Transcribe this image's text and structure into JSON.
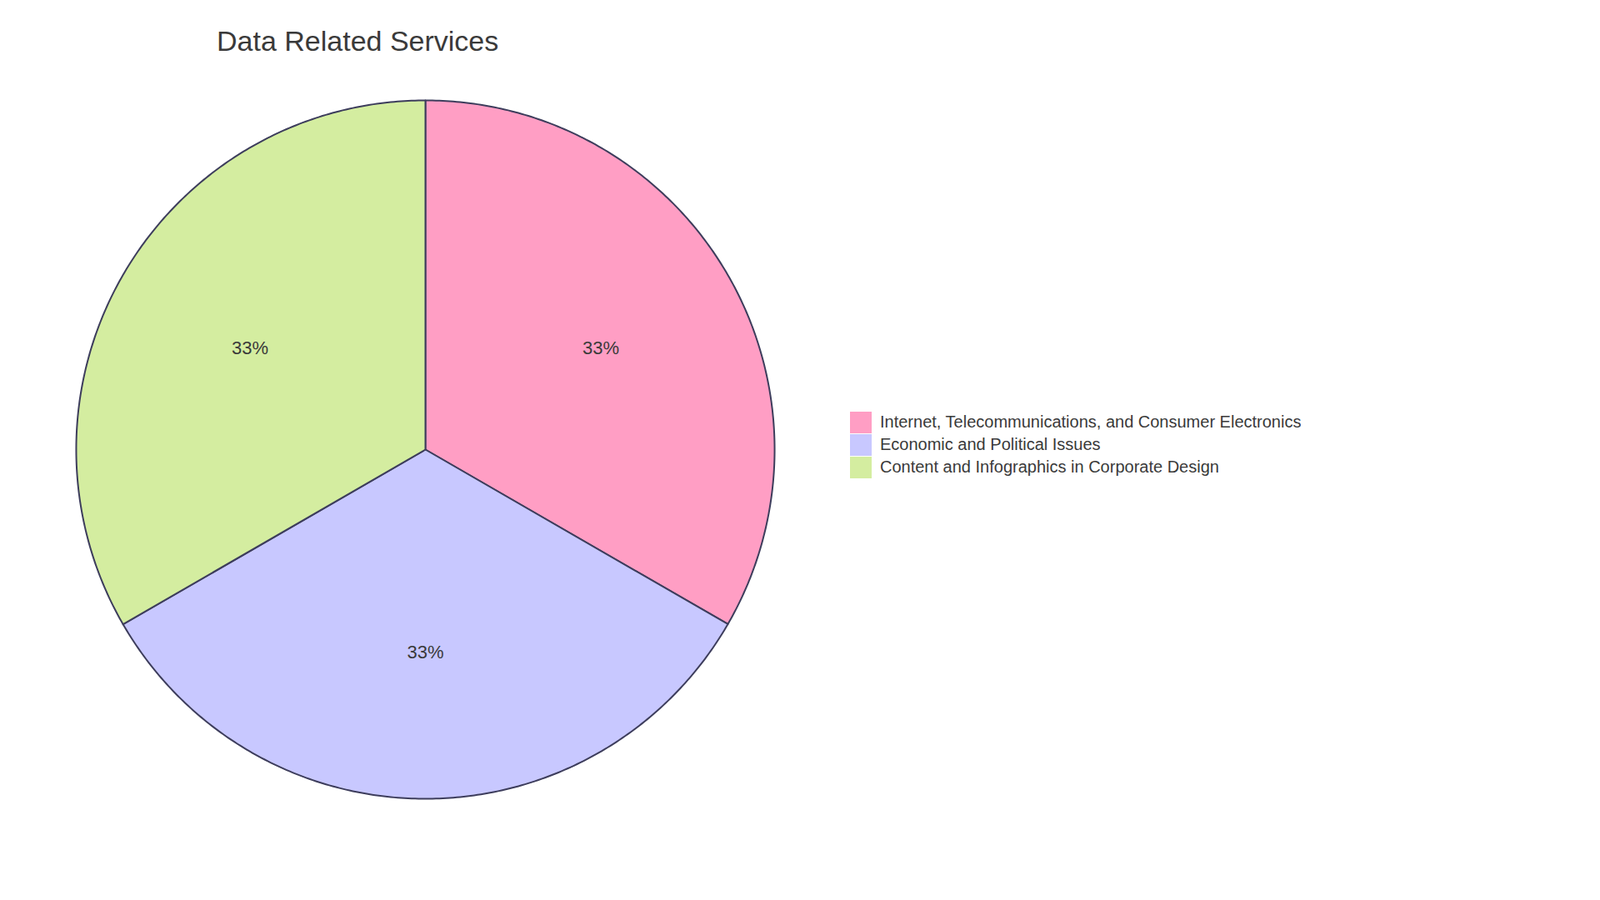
{
  "chart_data": {
    "type": "pie",
    "title": "Data Related Services",
    "categories": [
      "Internet, Telecommunications, and Consumer Electronics",
      "Economic and Political Issues",
      "Content and Infographics in Corporate Design"
    ],
    "values": [
      33.33,
      33.33,
      33.34
    ],
    "value_labels": [
      "33%",
      "33%",
      "33%"
    ],
    "data_labels": true,
    "colors": [
      "#FF9EC4",
      "#C8C8FF",
      "#D4EDA0"
    ],
    "legend": "right"
  }
}
